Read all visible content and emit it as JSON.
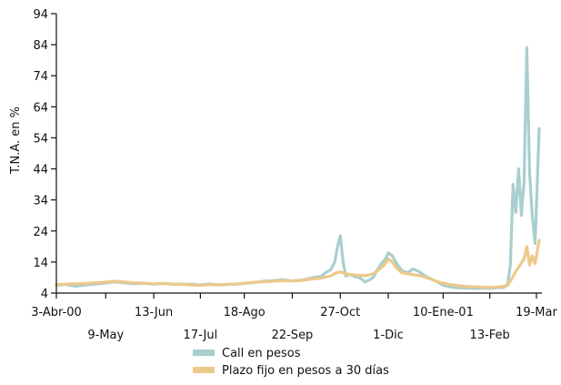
{
  "chart_data": {
    "type": "line",
    "title": "",
    "xlabel": "",
    "ylabel": "T.N.A. en %",
    "ylim": [
      4,
      94
    ],
    "yticks": [
      4,
      14,
      24,
      34,
      44,
      54,
      64,
      74,
      84,
      94
    ],
    "grid": false,
    "legend_position": "bottom",
    "x_start": "2000-04-03",
    "x_end": "2001-03-23",
    "xticks": [
      {
        "date": "2000-04-03",
        "label": "3-Abr-00",
        "row": 1
      },
      {
        "date": "2000-05-09",
        "label": "9-May",
        "row": 2
      },
      {
        "date": "2000-06-13",
        "label": "13-Jun",
        "row": 1
      },
      {
        "date": "2000-07-17",
        "label": "17-Jul",
        "row": 2
      },
      {
        "date": "2000-08-18",
        "label": "18-Ago",
        "row": 1
      },
      {
        "date": "2000-09-22",
        "label": "22-Sep",
        "row": 2
      },
      {
        "date": "2000-10-27",
        "label": "27-Oct",
        "row": 1
      },
      {
        "date": "2000-12-01",
        "label": "1-Dic",
        "row": 2
      },
      {
        "date": "2001-01-10",
        "label": "10-Ene-01",
        "row": 1
      },
      {
        "date": "2001-02-13",
        "label": "13-Feb",
        "row": 2
      },
      {
        "date": "2001-03-19",
        "label": "19-Mar",
        "row": 1
      }
    ],
    "series": [
      {
        "name": "Call en pesos",
        "color": "#a9cece",
        "points": [
          [
            "2000-04-03",
            6.5
          ],
          [
            "2000-04-10",
            6.8
          ],
          [
            "2000-04-17",
            6.2
          ],
          [
            "2000-04-24",
            6.6
          ],
          [
            "2000-05-01",
            6.9
          ],
          [
            "2000-05-08",
            7.2
          ],
          [
            "2000-05-15",
            7.6
          ],
          [
            "2000-05-22",
            7.3
          ],
          [
            "2000-05-29",
            7.0
          ],
          [
            "2000-06-05",
            7.2
          ],
          [
            "2000-06-13",
            6.9
          ],
          [
            "2000-06-20",
            7.1
          ],
          [
            "2000-06-27",
            6.8
          ],
          [
            "2000-07-04",
            6.9
          ],
          [
            "2000-07-11",
            6.8
          ],
          [
            "2000-07-17",
            6.6
          ],
          [
            "2000-07-24",
            6.9
          ],
          [
            "2000-07-31",
            6.6
          ],
          [
            "2000-08-07",
            6.8
          ],
          [
            "2000-08-14",
            6.9
          ],
          [
            "2000-08-18",
            7.1
          ],
          [
            "2000-08-25",
            7.4
          ],
          [
            "2000-09-01",
            7.8
          ],
          [
            "2000-09-08",
            8.0
          ],
          [
            "2000-09-15",
            8.3
          ],
          [
            "2000-09-22",
            7.9
          ],
          [
            "2000-09-29",
            8.2
          ],
          [
            "2000-10-06",
            8.9
          ],
          [
            "2000-10-13",
            9.4
          ],
          [
            "2000-10-16",
            10.5
          ],
          [
            "2000-10-20",
            11.5
          ],
          [
            "2000-10-23",
            14.0
          ],
          [
            "2000-10-25",
            19.0
          ],
          [
            "2000-10-27",
            22.5
          ],
          [
            "2000-10-29",
            14.0
          ],
          [
            "2000-10-31",
            9.5
          ],
          [
            "2000-11-03",
            10.0
          ],
          [
            "2000-11-07",
            9.2
          ],
          [
            "2000-11-10",
            9.0
          ],
          [
            "2000-11-14",
            7.6
          ],
          [
            "2000-11-17",
            8.2
          ],
          [
            "2000-11-20",
            9.0
          ],
          [
            "2000-11-23",
            11.5
          ],
          [
            "2000-11-26",
            13.5
          ],
          [
            "2000-11-29",
            15.0
          ],
          [
            "2000-12-01",
            17.0
          ],
          [
            "2000-12-04",
            16.0
          ],
          [
            "2000-12-07",
            13.5
          ],
          [
            "2000-12-11",
            11.2
          ],
          [
            "2000-12-15",
            10.5
          ],
          [
            "2000-12-19",
            11.8
          ],
          [
            "2000-12-23",
            11.0
          ],
          [
            "2000-12-28",
            9.5
          ],
          [
            "2001-01-02",
            8.4
          ],
          [
            "2001-01-07",
            7.3
          ],
          [
            "2001-01-10",
            6.5
          ],
          [
            "2001-01-15",
            6.0
          ],
          [
            "2001-01-20",
            5.7
          ],
          [
            "2001-01-27",
            5.6
          ],
          [
            "2001-02-03",
            5.5
          ],
          [
            "2001-02-10",
            5.6
          ],
          [
            "2001-02-13",
            5.5
          ],
          [
            "2001-02-18",
            5.7
          ],
          [
            "2001-02-23",
            5.8
          ],
          [
            "2001-02-26",
            6.5
          ],
          [
            "2001-02-28",
            13.0
          ],
          [
            "2001-03-02",
            39.0
          ],
          [
            "2001-03-04",
            30.0
          ],
          [
            "2001-03-06",
            44.0
          ],
          [
            "2001-03-08",
            29.0
          ],
          [
            "2001-03-10",
            40.0
          ],
          [
            "2001-03-12",
            83.0
          ],
          [
            "2001-03-14",
            43.0
          ],
          [
            "2001-03-16",
            29.0
          ],
          [
            "2001-03-18",
            20.0
          ],
          [
            "2001-03-21",
            57.0
          ]
        ]
      },
      {
        "name": "Plazo fijo en pesos a 30 días",
        "color": "#edc98a",
        "points": [
          [
            "2000-04-03",
            6.7
          ],
          [
            "2000-04-10",
            6.9
          ],
          [
            "2000-04-17",
            7.0
          ],
          [
            "2000-04-24",
            7.1
          ],
          [
            "2000-05-01",
            7.3
          ],
          [
            "2000-05-08",
            7.5
          ],
          [
            "2000-05-15",
            7.8
          ],
          [
            "2000-05-22",
            7.6
          ],
          [
            "2000-05-29",
            7.3
          ],
          [
            "2000-06-05",
            7.2
          ],
          [
            "2000-06-13",
            7.0
          ],
          [
            "2000-06-20",
            7.1
          ],
          [
            "2000-06-27",
            6.9
          ],
          [
            "2000-07-04",
            6.8
          ],
          [
            "2000-07-11",
            6.6
          ],
          [
            "2000-07-17",
            6.5
          ],
          [
            "2000-07-24",
            6.7
          ],
          [
            "2000-07-31",
            6.7
          ],
          [
            "2000-08-07",
            6.8
          ],
          [
            "2000-08-14",
            7.0
          ],
          [
            "2000-08-18",
            7.2
          ],
          [
            "2000-08-25",
            7.5
          ],
          [
            "2000-09-01",
            7.6
          ],
          [
            "2000-09-08",
            7.8
          ],
          [
            "2000-09-15",
            8.0
          ],
          [
            "2000-09-22",
            7.9
          ],
          [
            "2000-09-29",
            8.1
          ],
          [
            "2000-10-06",
            8.5
          ],
          [
            "2000-10-13",
            8.8
          ],
          [
            "2000-10-20",
            9.5
          ],
          [
            "2000-10-24",
            10.5
          ],
          [
            "2000-10-27",
            10.8
          ],
          [
            "2000-10-31",
            10.2
          ],
          [
            "2000-11-07",
            9.8
          ],
          [
            "2000-11-14",
            9.6
          ],
          [
            "2000-11-20",
            10.2
          ],
          [
            "2000-11-24",
            11.5
          ],
          [
            "2000-11-28",
            13.0
          ],
          [
            "2000-12-01",
            15.0
          ],
          [
            "2000-12-04",
            14.0
          ],
          [
            "2000-12-07",
            12.0
          ],
          [
            "2000-12-11",
            10.5
          ],
          [
            "2000-12-18",
            10.0
          ],
          [
            "2000-12-25",
            9.5
          ],
          [
            "2001-01-01",
            8.5
          ],
          [
            "2001-01-07",
            7.5
          ],
          [
            "2001-01-14",
            6.8
          ],
          [
            "2001-01-21",
            6.4
          ],
          [
            "2001-01-28",
            6.1
          ],
          [
            "2001-02-04",
            6.0
          ],
          [
            "2001-02-13",
            5.8
          ],
          [
            "2001-02-20",
            6.0
          ],
          [
            "2001-02-26",
            6.5
          ],
          [
            "2001-03-01",
            8.5
          ],
          [
            "2001-03-04",
            11.0
          ],
          [
            "2001-03-07",
            13.0
          ],
          [
            "2001-03-10",
            15.0
          ],
          [
            "2001-03-12",
            19.0
          ],
          [
            "2001-03-14",
            13.0
          ],
          [
            "2001-03-16",
            16.0
          ],
          [
            "2001-03-18",
            13.5
          ],
          [
            "2001-03-21",
            21.0
          ]
        ]
      }
    ]
  }
}
